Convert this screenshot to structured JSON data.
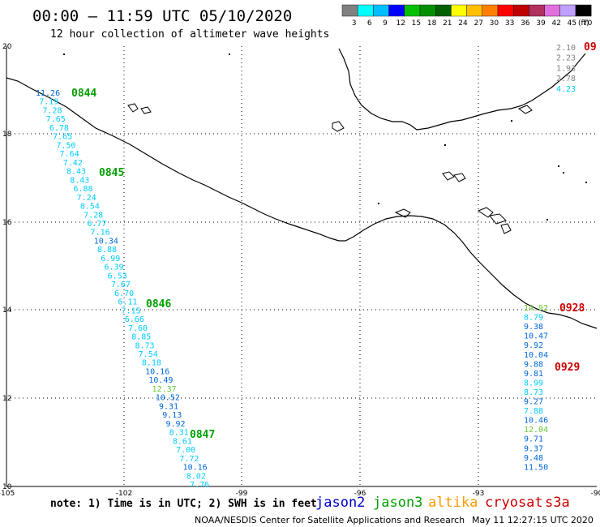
{
  "title": "00:00 – 11:59 UTC 05/10/2020",
  "subtitle": "12 hour collection of altimeter wave heights",
  "colorbar": {
    "labels": [
      "3",
      "6",
      "9",
      "12",
      "15",
      "18",
      "21",
      "24",
      "27",
      "30",
      "33",
      "36",
      "39",
      "42",
      "45",
      "70"
    ],
    "unit": "(ft)",
    "colors": [
      "#808080",
      "#00ffff",
      "#00bfff",
      "#0000ff",
      "#00c000",
      "#009000",
      "#006000",
      "#ffff00",
      "#ffc000",
      "#ff8000",
      "#ff0000",
      "#c00000",
      "#b03060",
      "#e070e0",
      "#c0a0ff",
      "#000000"
    ]
  },
  "map": {
    "lon_ticks": [
      "-105",
      "-102",
      "-99",
      "-96",
      "-93",
      "-90"
    ],
    "lat_ticks": [
      "20",
      "18",
      "16",
      "14",
      "12",
      "10"
    ]
  },
  "colors": {
    "jason2": "#0000cc",
    "jason3": "#00a000",
    "altika": "#ff9900",
    "cryosat": "#cc0000",
    "s3a": "#cc0000",
    "light_cyan": "#00ccff",
    "mid_blue": "#0066dd",
    "gray": "#808080",
    "green_val": "#66cc33"
  },
  "track_west": {
    "times": [
      {
        "label": "0844",
        "color": "jason3"
      },
      {
        "label": "0845",
        "color": "jason3"
      },
      {
        "label": "0846",
        "color": "jason3"
      },
      {
        "label": "0847",
        "color": "jason3"
      }
    ],
    "values": [
      {
        "v": "11.26",
        "c": "mid_blue"
      },
      {
        "v": "7.19",
        "c": "light_cyan"
      },
      {
        "v": "7.28",
        "c": "light_cyan"
      },
      {
        "v": "7.65",
        "c": "light_cyan"
      },
      {
        "v": "6.78",
        "c": "light_cyan"
      },
      {
        "v": "7.65",
        "c": "light_cyan"
      },
      {
        "v": "7.50",
        "c": "light_cyan"
      },
      {
        "v": "7.64",
        "c": "light_cyan"
      },
      {
        "v": "7.42",
        "c": "light_cyan"
      },
      {
        "v": "8.43",
        "c": "light_cyan"
      },
      {
        "v": "8.43",
        "c": "light_cyan"
      },
      {
        "v": "6.88",
        "c": "light_cyan"
      },
      {
        "v": "7.24",
        "c": "light_cyan"
      },
      {
        "v": "8.54",
        "c": "light_cyan"
      },
      {
        "v": "7.28",
        "c": "light_cyan"
      },
      {
        "v": "6.77",
        "c": "light_cyan"
      },
      {
        "v": "7.16",
        "c": "light_cyan"
      },
      {
        "v": "10.34",
        "c": "mid_blue"
      },
      {
        "v": "8.88",
        "c": "light_cyan"
      },
      {
        "v": "6.99",
        "c": "light_cyan"
      },
      {
        "v": "6.39",
        "c": "light_cyan"
      },
      {
        "v": "6.53",
        "c": "light_cyan"
      },
      {
        "v": "7.67",
        "c": "light_cyan"
      },
      {
        "v": "6.70",
        "c": "light_cyan"
      },
      {
        "v": "6.11",
        "c": "light_cyan"
      },
      {
        "v": "7.15",
        "c": "light_cyan"
      },
      {
        "v": "6.66",
        "c": "light_cyan"
      },
      {
        "v": "7.60",
        "c": "light_cyan"
      },
      {
        "v": "8.85",
        "c": "light_cyan"
      },
      {
        "v": "8.73",
        "c": "light_cyan"
      },
      {
        "v": "7.54",
        "c": "light_cyan"
      },
      {
        "v": "8.18",
        "c": "light_cyan"
      },
      {
        "v": "10.16",
        "c": "mid_blue"
      },
      {
        "v": "10.49",
        "c": "mid_blue"
      },
      {
        "v": "12.37",
        "c": "green_val"
      },
      {
        "v": "10.52",
        "c": "mid_blue"
      },
      {
        "v": "9.31",
        "c": "mid_blue"
      },
      {
        "v": "9.13",
        "c": "mid_blue"
      },
      {
        "v": "9.92",
        "c": "mid_blue"
      },
      {
        "v": "8.31",
        "c": "light_cyan"
      },
      {
        "v": "8.61",
        "c": "light_cyan"
      },
      {
        "v": "7.00",
        "c": "light_cyan"
      },
      {
        "v": "7.72",
        "c": "light_cyan"
      },
      {
        "v": "10.16",
        "c": "mid_blue"
      },
      {
        "v": "8.02",
        "c": "light_cyan"
      },
      {
        "v": "7.76",
        "c": "light_cyan"
      }
    ]
  },
  "track_ne": {
    "time": {
      "label": "09",
      "color": "cryosat"
    },
    "values": [
      {
        "v": "2.10",
        "c": "gray"
      },
      {
        "v": "2.23",
        "c": "gray"
      },
      {
        "v": "1.93",
        "c": "gray"
      },
      {
        "v": "2.78",
        "c": "gray"
      },
      {
        "v": "4.23",
        "c": "light_cyan"
      }
    ]
  },
  "track_east": {
    "times": [
      {
        "label": "0928",
        "color": "cryosat"
      },
      {
        "label": "0929",
        "color": "cryosat"
      }
    ],
    "values": [
      {
        "v": "14.92",
        "c": "green_val"
      },
      {
        "v": "8.79",
        "c": "light_cyan"
      },
      {
        "v": "9.38",
        "c": "mid_blue"
      },
      {
        "v": "10.47",
        "c": "mid_blue"
      },
      {
        "v": "9.92",
        "c": "mid_blue"
      },
      {
        "v": "10.04",
        "c": "mid_blue"
      },
      {
        "v": "9.88",
        "c": "mid_blue"
      },
      {
        "v": "9.81",
        "c": "mid_blue"
      },
      {
        "v": "8.99",
        "c": "light_cyan"
      },
      {
        "v": "8.73",
        "c": "light_cyan"
      },
      {
        "v": "9.27",
        "c": "mid_blue"
      },
      {
        "v": "7.88",
        "c": "light_cyan"
      },
      {
        "v": "10.46",
        "c": "mid_blue"
      },
      {
        "v": "12.04",
        "c": "green_val"
      },
      {
        "v": "9.71",
        "c": "mid_blue"
      },
      {
        "v": "9.37",
        "c": "mid_blue"
      },
      {
        "v": "9.48",
        "c": "mid_blue"
      },
      {
        "v": "11.50",
        "c": "mid_blue"
      }
    ]
  },
  "footer": {
    "note": "note: 1) Time is in UTC; 2) SWH is in feet",
    "legend": [
      {
        "name": "jason2",
        "color": "jason2"
      },
      {
        "name": "jason3",
        "color": "jason3"
      },
      {
        "name": "altika",
        "color": "altika"
      },
      {
        "name": "cryosat",
        "color": "cryosat"
      },
      {
        "name": "s3a",
        "color": "s3a"
      }
    ],
    "credit": "NOAA/NESDIS Center for Satellite Applications and Research",
    "timestamp": "May 11 12:27:15 UTC 2020"
  }
}
